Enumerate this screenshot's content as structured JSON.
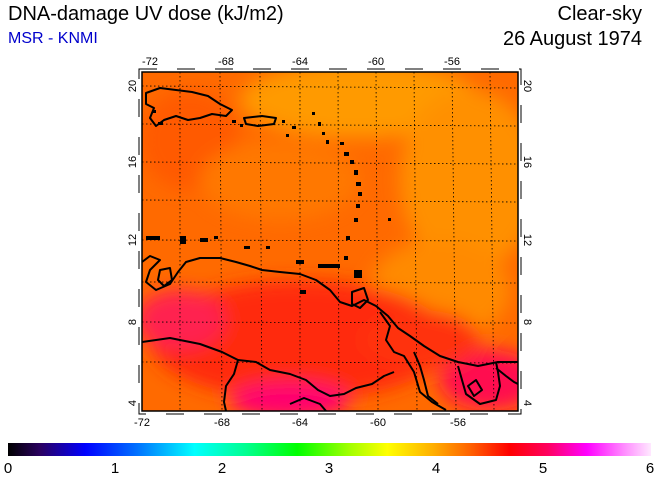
{
  "header": {
    "title": "DNA-damage UV dose (kJ/m2)",
    "source": "MSR - KNMI",
    "sky_condition": "Clear-sky",
    "date": "26 August 1974"
  },
  "map": {
    "region": "Caribbean / Lesser Antilles",
    "lon_range": [
      -73,
      -52
    ],
    "lat_range": [
      3.5,
      20.5
    ],
    "lon_ticks": [
      "-72",
      "-68",
      "-64",
      "-60",
      "-56"
    ],
    "lat_ticks": [
      "20",
      "16",
      "12",
      "8",
      "4"
    ],
    "gridlines": "dotted, every 2 degrees"
  },
  "colorbar": {
    "labels": [
      "0",
      "1",
      "2",
      "3",
      "4",
      "5",
      "6"
    ],
    "colors": [
      "#000000",
      "#0000ff",
      "#00ffff",
      "#00ff00",
      "#ffff00",
      "#ff0000",
      "#ff00ff",
      "#ffffff"
    ]
  }
}
